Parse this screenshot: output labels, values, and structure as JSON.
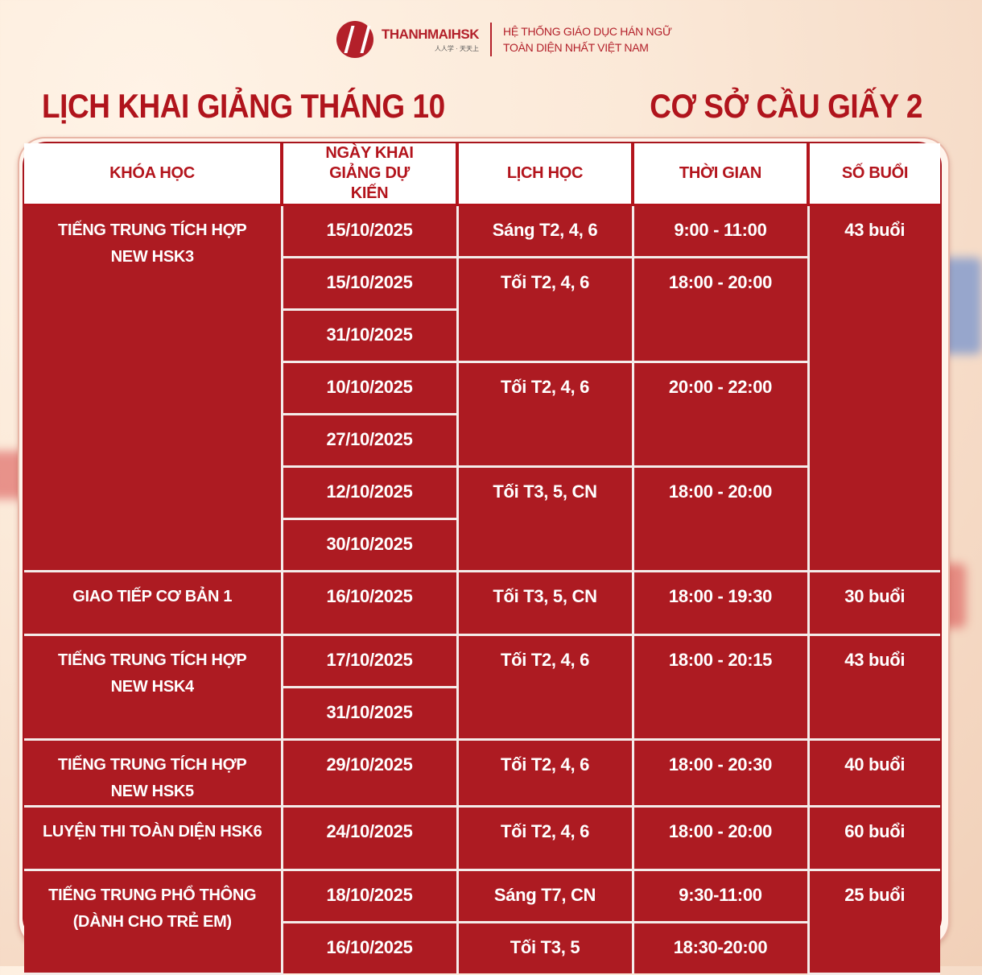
{
  "logo": {
    "brand": "THANHMAIHSK",
    "motto": "人人学 · 天天上",
    "tagline_1": "HỆ THỐNG GIÁO DỤC HÁN NGỮ",
    "tagline_2": "TOÀN DIỆN NHẤT VIỆT NAM"
  },
  "title_left": "LỊCH KHAI GIẢNG THÁNG 10",
  "title_right": "CƠ SỞ CẦU GIẤY 2",
  "colors": {
    "brand_red": "#b0141c",
    "cell_red": "#ad1b22",
    "header_bg": "#ffffff"
  },
  "table": {
    "headers": [
      "KHÓA HỌC",
      "NGÀY KHAI GIẢNG DỰ KIẾN",
      "LỊCH HỌC",
      "THỜI GIAN",
      "SỐ BUỔI"
    ],
    "courses": [
      {
        "name": [
          "TIẾNG TRUNG TÍCH HỢP",
          "NEW HSK3"
        ],
        "sessions": "43 buổi",
        "groups": [
          {
            "schedule": "Sáng T2, 4, 6",
            "time": "9:00 - 11:00",
            "dates": [
              "15/10/2025"
            ]
          },
          {
            "schedule": "Tối T2, 4, 6",
            "time": "18:00 - 20:00",
            "dates": [
              "15/10/2025",
              "31/10/2025"
            ]
          },
          {
            "schedule": "Tối T2, 4, 6",
            "time": "20:00 - 22:00",
            "dates": [
              "10/10/2025",
              "27/10/2025"
            ]
          },
          {
            "schedule": "Tối T3, 5, CN",
            "time": "18:00 - 20:00",
            "dates": [
              "12/10/2025",
              "30/10/2025"
            ]
          }
        ]
      },
      {
        "name": [
          "GIAO TIẾP CƠ BẢN 1"
        ],
        "sessions": "30 buổi",
        "groups": [
          {
            "schedule": "Tối T3, 5, CN",
            "time": "18:00 - 19:30",
            "dates": [
              "16/10/2025"
            ]
          }
        ]
      },
      {
        "name": [
          "TIẾNG TRUNG TÍCH HỢP",
          "NEW HSK4"
        ],
        "sessions": "43 buổi",
        "groups": [
          {
            "schedule": "Tối T2, 4, 6",
            "time": "18:00 - 20:15",
            "dates": [
              "17/10/2025",
              "31/10/2025"
            ]
          }
        ]
      },
      {
        "name": [
          "TIẾNG TRUNG TÍCH HỢP",
          "NEW HSK5"
        ],
        "sessions": "40 buổi",
        "groups": [
          {
            "schedule": "Tối T2, 4, 6",
            "time": "18:00 - 20:30",
            "dates": [
              "29/10/2025"
            ]
          }
        ]
      },
      {
        "name": [
          "LUYỆN THI TOÀN DIỆN HSK6"
        ],
        "sessions": "60 buổi",
        "groups": [
          {
            "schedule": "Tối T2, 4, 6",
            "time": "18:00 - 20:00",
            "dates": [
              "24/10/2025"
            ]
          }
        ]
      },
      {
        "name": [
          "TIẾNG TRUNG PHỔ THÔNG",
          "(DÀNH CHO TRẺ EM)"
        ],
        "sessions": "25 buổi",
        "groups": [
          {
            "schedule": "Sáng T7, CN",
            "time": "9:30-11:00",
            "dates": [
              "18/10/2025"
            ]
          },
          {
            "schedule": "Tối T3, 5",
            "time": "18:30-20:00",
            "dates": [
              "16/10/2025"
            ]
          }
        ]
      }
    ]
  }
}
